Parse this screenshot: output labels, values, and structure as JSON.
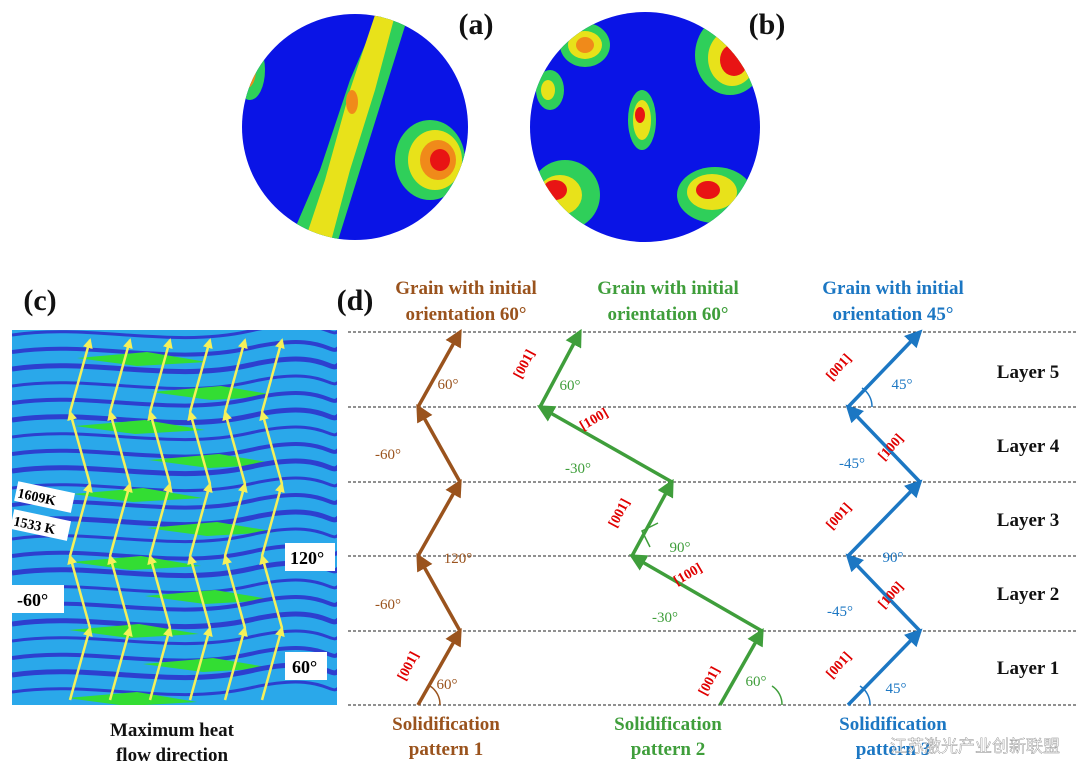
{
  "panels": {
    "a": "(a)",
    "b": "(b)",
    "c": "(c)",
    "d": "(d)"
  },
  "panel_c": {
    "isotherms": [
      "1609K",
      "1533 K"
    ],
    "angles": [
      "-60°",
      "120°",
      "60°"
    ],
    "caption": [
      "Maximum heat",
      "flow direction"
    ]
  },
  "panel_d": {
    "layers": [
      "Layer 5",
      "Layer 4",
      "Layer 3",
      "Layer 2",
      "Layer 1"
    ],
    "columns": [
      {
        "heading": [
          "Grain with initial",
          "orientation 60°"
        ],
        "footer": [
          "Solidification",
          "pattern 1"
        ],
        "labels": [
          "60°",
          "-60°",
          "120°",
          "-60°",
          "60°",
          "[001]"
        ]
      },
      {
        "heading": [
          "Grain with initial",
          "orientation 60°"
        ],
        "footer": [
          "Solidification",
          "pattern 2"
        ],
        "labels": [
          "[001]",
          "60°",
          "-30°",
          "[100]",
          "90°",
          "[001]",
          "-30°",
          "[100]",
          "60°",
          "[001]"
        ]
      },
      {
        "heading": [
          "Grain with initial",
          "orientation 45°"
        ],
        "footer": [
          "Solidification",
          "pattern 3"
        ],
        "labels": [
          "[001]",
          "45°",
          "[100]",
          "-45°",
          "90°",
          "[001]",
          "[100]",
          "-45°",
          "[001]",
          "45°"
        ]
      }
    ]
  },
  "watermark": "江苏激光产业创新联盟"
}
